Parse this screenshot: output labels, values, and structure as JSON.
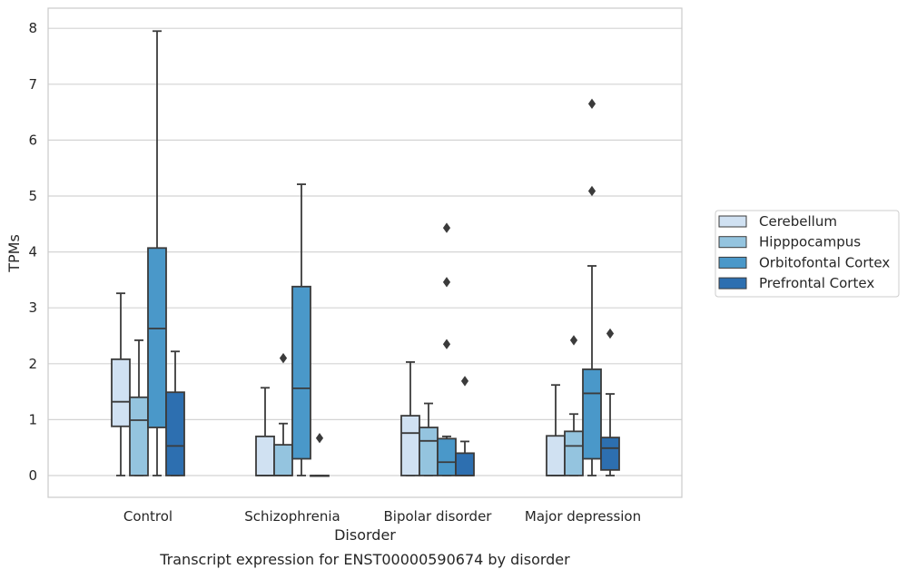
{
  "chart_data": {
    "type": "boxplot",
    "title": "Transcript expression for ENST00000590674 by disorder",
    "xlabel": "Disorder",
    "ylabel": "TPMs",
    "ylim": [
      -0.4,
      8.35
    ],
    "yticks": [
      0,
      1,
      2,
      3,
      4,
      5,
      6,
      7,
      8
    ],
    "grid": "horizontal",
    "legend_position": "right",
    "categories": [
      "Control",
      "Schizophrenia",
      "Bipolar disorder",
      "Major depression"
    ],
    "series": [
      {
        "name": "Cerebellum",
        "color": "#d0e1f2",
        "boxes": [
          {
            "whislo": 0,
            "q1": 0.88,
            "median": 1.32,
            "q3": 2.08,
            "whishi": 3.26,
            "fliers": []
          },
          {
            "whislo": 0,
            "q1": 0,
            "median": 0,
            "q3": 0.7,
            "whishi": 1.57,
            "fliers": []
          },
          {
            "whislo": 0,
            "q1": 0,
            "median": 0.76,
            "q3": 1.07,
            "whishi": 2.03,
            "fliers": []
          },
          {
            "whislo": 0,
            "q1": 0,
            "median": 0,
            "q3": 0.71,
            "whishi": 1.62,
            "fliers": []
          }
        ]
      },
      {
        "name": "Hipppocampus",
        "color": "#94c4df",
        "boxes": [
          {
            "whislo": 0,
            "q1": 0,
            "median": 0.99,
            "q3": 1.4,
            "whishi": 2.42,
            "fliers": []
          },
          {
            "whislo": 0,
            "q1": 0,
            "median": 0,
            "q3": 0.55,
            "whishi": 0.93,
            "fliers": [
              2.1
            ]
          },
          {
            "whislo": 0,
            "q1": 0,
            "median": 0.62,
            "q3": 0.86,
            "whishi": 1.29,
            "fliers": []
          },
          {
            "whislo": 0,
            "q1": 0,
            "median": 0.53,
            "q3": 0.79,
            "whishi": 1.1,
            "fliers": [
              2.42
            ]
          }
        ]
      },
      {
        "name": "Orbitofontal Cortex",
        "color": "#4a98c9",
        "boxes": [
          {
            "whislo": 0,
            "q1": 0.86,
            "median": 2.63,
            "q3": 4.07,
            "whishi": 7.95,
            "fliers": []
          },
          {
            "whislo": 0,
            "q1": 0.3,
            "median": 1.56,
            "q3": 3.38,
            "whishi": 5.21,
            "fliers": []
          },
          {
            "whislo": 0,
            "q1": 0,
            "median": 0.24,
            "q3": 0.66,
            "whishi": 0.7,
            "fliers": [
              2.35,
              3.46,
              4.43
            ]
          },
          {
            "whislo": 0,
            "q1": 0.3,
            "median": 1.47,
            "q3": 1.9,
            "whishi": 3.75,
            "fliers": [
              5.09,
              6.65
            ]
          }
        ]
      },
      {
        "name": "Prefrontal Cortex",
        "color": "#2d6fb0",
        "boxes": [
          {
            "whislo": 0,
            "q1": 0,
            "median": 0.53,
            "q3": 1.49,
            "whishi": 2.22,
            "fliers": []
          },
          {
            "whislo": 0,
            "q1": 0,
            "median": 0,
            "q3": 0,
            "whishi": 0,
            "fliers": [
              0.67
            ]
          },
          {
            "whislo": 0,
            "q1": 0,
            "median": 0,
            "q3": 0.4,
            "whishi": 0.61,
            "fliers": [
              1.69
            ]
          },
          {
            "whislo": 0,
            "q1": 0.1,
            "median": 0.49,
            "q3": 0.68,
            "whishi": 1.46,
            "fliers": [
              2.54
            ]
          }
        ]
      }
    ]
  }
}
